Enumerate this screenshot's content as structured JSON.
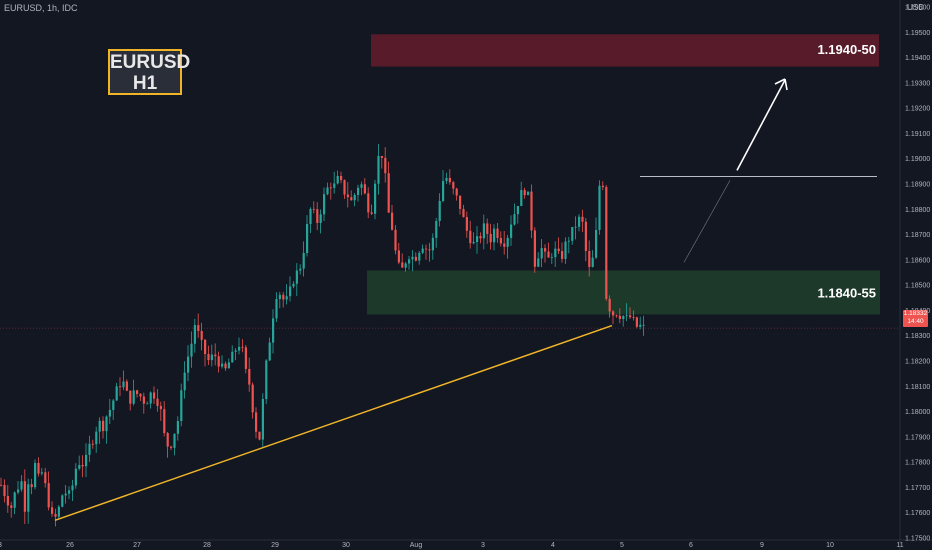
{
  "header": {
    "symbol_info": "EURUSD, 1h, IDC",
    "currency": "USD"
  },
  "badge": {
    "line1": "EURUSD",
    "line2": "H1"
  },
  "price_tag": {
    "price": "1.18332",
    "timer": "14:40"
  },
  "zones": {
    "resistance": {
      "label": "1.1940-50",
      "from": 1.194,
      "to": 1.195,
      "color": "#5c1b2b"
    },
    "support": {
      "label": "1.1840-55",
      "from": 1.184,
      "to": 1.1855,
      "color": "#1f3d2b"
    }
  },
  "colors": {
    "up": "#26a69a",
    "down": "#ef5350",
    "trendline": "#f0b429",
    "background": "#131722"
  },
  "chart_data": {
    "type": "candlestick",
    "ylim": [
      1.1745,
      1.197
    ],
    "y_ticks": [
      "1.19600",
      "1.19500",
      "1.19400",
      "1.19300",
      "1.19200",
      "1.19100",
      "1.19000",
      "1.18900",
      "1.18800",
      "1.18700",
      "1.18600",
      "1.18500",
      "1.18400",
      "1.18300",
      "1.18200",
      "1.18100",
      "1.18000",
      "1.17900",
      "1.17800",
      "1.17700",
      "1.17600",
      "1.17500"
    ],
    "x_ticks": [
      "3",
      "26",
      "27",
      "28",
      "29",
      "30",
      "Aug",
      "3",
      "4",
      "5",
      "6",
      "9",
      "10",
      "11"
    ],
    "series": [
      {
        "name": "EURUSD",
        "close_path": [
          [
            0,
            1.1771
          ],
          [
            5,
            1.1766
          ],
          [
            10,
            1.1762
          ],
          [
            14,
            1.1768
          ],
          [
            18,
            1.1771
          ],
          [
            22,
            1.1773
          ],
          [
            24,
            1.1761
          ],
          [
            27,
            1.1773
          ],
          [
            30,
            1.177
          ],
          [
            34,
            1.1779
          ],
          [
            37,
            1.1773
          ],
          [
            40,
            1.1777
          ],
          [
            44,
            1.1771
          ],
          [
            48,
            1.1763
          ],
          [
            51,
            1.1758
          ],
          [
            55,
            1.1758
          ],
          [
            58,
            1.1762
          ],
          [
            61,
            1.1767
          ],
          [
            65,
            1.1768
          ],
          [
            68,
            1.1767
          ],
          [
            71,
            1.177
          ],
          [
            75,
            1.1778
          ],
          [
            78,
            1.178
          ],
          [
            81,
            1.1779
          ],
          [
            85,
            1.1781
          ],
          [
            88,
            1.1786
          ],
          [
            91,
            1.1788
          ],
          [
            95,
            1.1793
          ],
          [
            98,
            1.1796
          ],
          [
            101,
            1.1793
          ],
          [
            105,
            1.1798
          ],
          [
            108,
            1.18
          ],
          [
            111,
            1.1803
          ],
          [
            115,
            1.1808
          ],
          [
            118,
            1.181
          ],
          [
            121,
            1.1813
          ],
          [
            125,
            1.1808
          ],
          [
            128,
            1.1804
          ],
          [
            131,
            1.1806
          ],
          [
            134,
            1.1808
          ],
          [
            138,
            1.1806
          ],
          [
            141,
            1.1806
          ],
          [
            144,
            1.1803
          ],
          [
            148,
            1.1806
          ],
          [
            151,
            1.1808
          ],
          [
            154,
            1.1806
          ],
          [
            158,
            1.1803
          ],
          [
            161,
            1.1798
          ],
          [
            164,
            1.1788
          ],
          [
            168,
            1.1786
          ],
          [
            171,
            1.1788
          ],
          [
            174,
            1.1793
          ],
          [
            178,
            1.1798
          ],
          [
            181,
            1.181
          ],
          [
            184,
            1.1818
          ],
          [
            188,
            1.1823
          ],
          [
            191,
            1.1828
          ],
          [
            194,
            1.1835
          ],
          [
            197,
            1.1831
          ],
          [
            200,
            1.1827
          ],
          [
            204,
            1.1823
          ],
          [
            207,
            1.182
          ],
          [
            210,
            1.1821
          ],
          [
            213,
            1.1823
          ],
          [
            217,
            1.182
          ],
          [
            220,
            1.1818
          ],
          [
            223,
            1.1815
          ],
          [
            226,
            1.1818
          ],
          [
            230,
            1.1821
          ],
          [
            233,
            1.1823
          ],
          [
            236,
            1.1826
          ],
          [
            239,
            1.1827
          ],
          [
            242,
            1.1823
          ],
          [
            245,
            1.1815
          ],
          [
            249,
            1.181
          ],
          [
            252,
            1.18
          ],
          [
            255,
            1.1793
          ],
          [
            258,
            1.1788
          ],
          [
            261,
            1.18
          ],
          [
            264,
            1.1815
          ],
          [
            267,
            1.1824
          ],
          [
            271,
            1.1835
          ],
          [
            274,
            1.1845
          ],
          [
            277,
            1.1848
          ],
          [
            280,
            1.1846
          ],
          [
            284,
            1.1843
          ],
          [
            287,
            1.1845
          ],
          [
            290,
            1.1849
          ],
          [
            293,
            1.1853
          ],
          [
            296,
            1.1855
          ],
          [
            300,
            1.1858
          ],
          [
            303,
            1.1865
          ],
          [
            306,
            1.1873
          ],
          [
            310,
            1.1881
          ],
          [
            313,
            1.1878
          ],
          [
            316,
            1.1875
          ],
          [
            320,
            1.188
          ],
          [
            323,
            1.1885
          ],
          [
            326,
            1.1888
          ],
          [
            330,
            1.189
          ],
          [
            333,
            1.1889
          ],
          [
            336,
            1.1892
          ],
          [
            340,
            1.189
          ],
          [
            343,
            1.1887
          ],
          [
            346,
            1.1886
          ],
          [
            350,
            1.1883
          ],
          [
            353,
            1.1885
          ],
          [
            356,
            1.1889
          ],
          [
            360,
            1.189
          ],
          [
            363,
            1.1887
          ],
          [
            366,
            1.1882
          ],
          [
            370,
            1.1878
          ],
          [
            373,
            1.1889
          ],
          [
            377,
            1.19
          ],
          [
            380,
            1.1903
          ],
          [
            383,
            1.1898
          ],
          [
            387,
            1.1879
          ],
          [
            390,
            1.1876
          ],
          [
            393,
            1.1866
          ],
          [
            397,
            1.1858
          ],
          [
            400,
            1.1855
          ],
          [
            403,
            1.1858
          ],
          [
            407,
            1.1862
          ],
          [
            410,
            1.1862
          ],
          [
            413,
            1.186
          ],
          [
            417,
            1.1863
          ],
          [
            420,
            1.1866
          ],
          [
            423,
            1.1866
          ],
          [
            427,
            1.1863
          ],
          [
            430,
            1.1865
          ],
          [
            433,
            1.187
          ],
          [
            437,
            1.188
          ],
          [
            440,
            1.1888
          ],
          [
            443,
            1.1893
          ],
          [
            447,
            1.1892
          ],
          [
            450,
            1.1888
          ],
          [
            453,
            1.1887
          ],
          [
            457,
            1.1883
          ],
          [
            460,
            1.188
          ],
          [
            463,
            1.1875
          ],
          [
            467,
            1.187
          ],
          [
            470,
            1.1868
          ],
          [
            473,
            1.1866
          ],
          [
            477,
            1.1868
          ],
          [
            480,
            1.187
          ],
          [
            483,
            1.1873
          ],
          [
            487,
            1.187
          ],
          [
            490,
            1.1868
          ],
          [
            493,
            1.1872
          ],
          [
            497,
            1.187
          ],
          [
            500,
            1.1868
          ],
          [
            503,
            1.1867
          ],
          [
            507,
            1.187
          ],
          [
            510,
            1.1875
          ],
          [
            513,
            1.1878
          ],
          [
            517,
            1.1883
          ],
          [
            520,
            1.1886
          ],
          [
            523,
            1.1888
          ],
          [
            527,
            1.1885
          ],
          [
            530,
            1.1875
          ],
          [
            533,
            1.1858
          ],
          [
            537,
            1.1862
          ],
          [
            540,
            1.1865
          ],
          [
            543,
            1.1862
          ],
          [
            547,
            1.186
          ],
          [
            550,
            1.1862
          ],
          [
            553,
            1.1864
          ],
          [
            557,
            1.1862
          ],
          [
            560,
            1.186
          ],
          [
            563,
            1.1865
          ],
          [
            567,
            1.1868
          ],
          [
            570,
            1.187
          ],
          [
            573,
            1.1873
          ],
          [
            577,
            1.1875
          ],
          [
            580,
            1.1878
          ],
          [
            583,
            1.187
          ],
          [
            587,
            1.1855
          ],
          [
            590,
            1.1858
          ],
          [
            593,
            1.1862
          ],
          [
            596,
            1.1875
          ],
          [
            599,
            1.1893
          ],
          [
            602,
            1.189
          ],
          [
            604,
            1.1848
          ],
          [
            607,
            1.1842
          ],
          [
            610,
            1.184
          ],
          [
            613,
            1.1838
          ],
          [
            617,
            1.184
          ],
          [
            620,
            1.1837
          ],
          [
            623,
            1.1838
          ],
          [
            627,
            1.1836
          ],
          [
            630,
            1.1838
          ],
          [
            633,
            1.1835
          ],
          [
            637,
            1.1833
          ],
          [
            640,
            1.1834
          ],
          [
            643,
            1.1833
          ]
        ]
      }
    ],
    "annotations": {
      "trendline": {
        "from": [
          "26",
          1.1757
        ],
        "to": [
          "5",
          1.1834
        ]
      },
      "target_level": 1.1893
    }
  }
}
